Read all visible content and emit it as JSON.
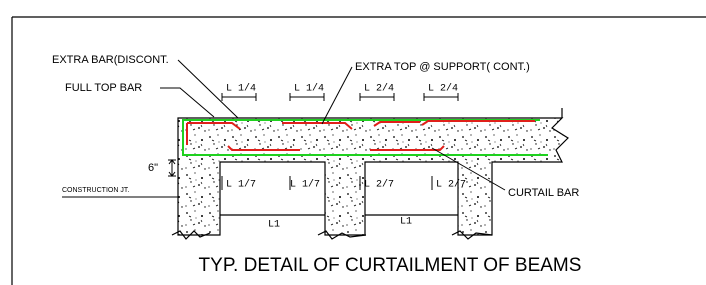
{
  "labels": {
    "extra_bar": "EXTRA BAR(DISCONT.",
    "extra_top": "EXTRA TOP @ SUPPORT( CONT.)",
    "full_top": "FULL TOP BAR",
    "depth": "6\"",
    "construction": "CONSTRUCTION JT.",
    "curtail": "CURTAIL BAR"
  },
  "top_dims": [
    "L 1/4",
    "L 1/4",
    "L 2/4",
    "L 2/4"
  ],
  "bottom_dims": [
    "L 1/7",
    "L 1/7",
    "L 2/7",
    "L 2/7"
  ],
  "spans": [
    "L1",
    "L1"
  ],
  "title": "TYP. DETAIL OF CURTAILMENT OF BEAMS"
}
